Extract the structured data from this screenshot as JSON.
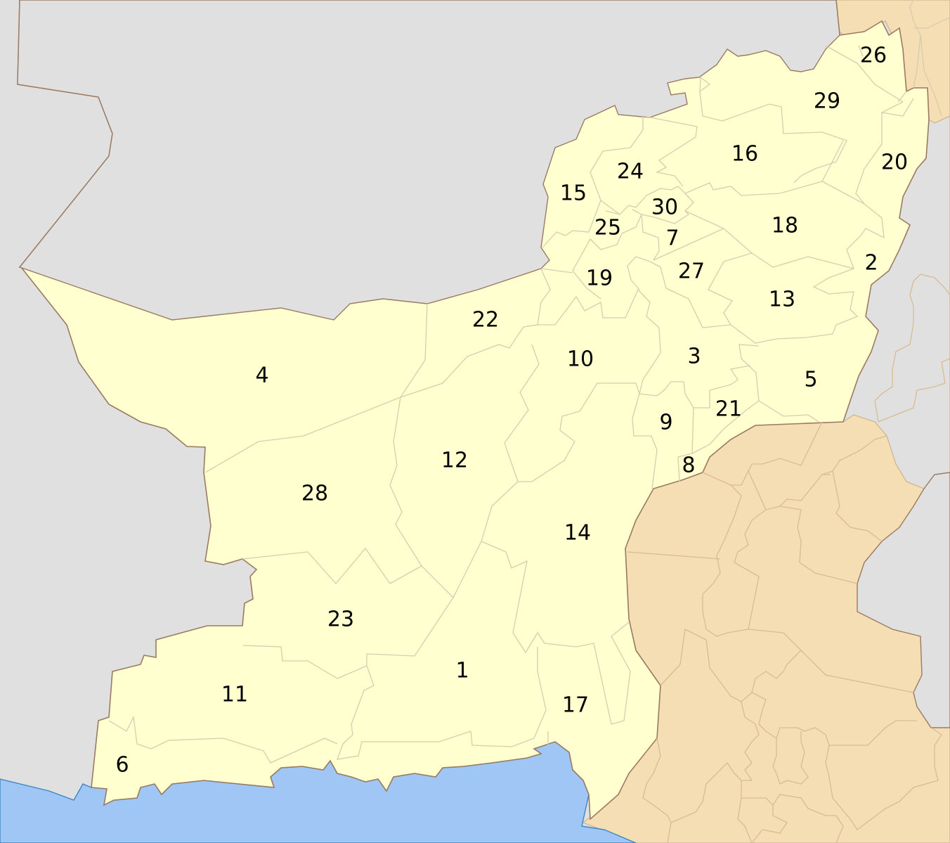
{
  "map": {
    "colors": {
      "background": "#e0e0e0",
      "province": "#ffffd0",
      "neighbor_region": "#f5deb3",
      "sea": "#a0c6f5",
      "sea_outline": "#3a86c7",
      "international_border": "#9b7a62",
      "district_border": "#d6cfae"
    },
    "district_labels": [
      "1",
      "2",
      "3",
      "4",
      "5",
      "6",
      "7",
      "8",
      "9",
      "10",
      "11",
      "12",
      "13",
      "14",
      "15",
      "16",
      "17",
      "18",
      "19",
      "20",
      "21",
      "22",
      "23",
      "24",
      "25",
      "26",
      "27",
      "28",
      "29",
      "30"
    ]
  }
}
